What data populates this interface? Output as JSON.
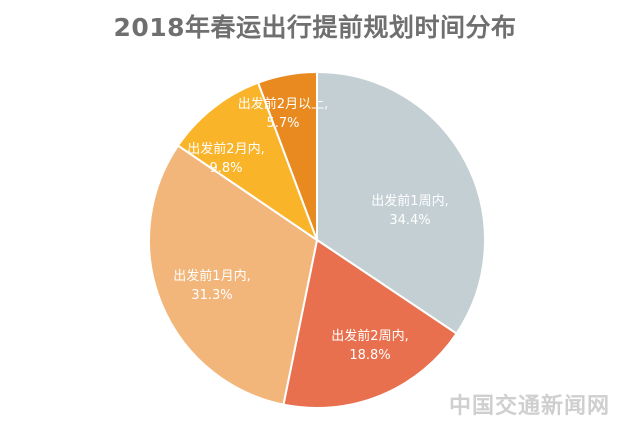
{
  "chart_data": {
    "type": "pie",
    "title": "2018年春运出行提前规划时间分布",
    "start_angle_deg": 0,
    "direction": "clockwise",
    "slices": [
      {
        "label": "出发前1周内,",
        "value": 34.4,
        "value_label": "34.4%",
        "color": "#c3cfd3"
      },
      {
        "label": "出发前2周内,",
        "value": 18.8,
        "value_label": "18.8%",
        "color": "#e8704f"
      },
      {
        "label": "出发前1月内,",
        "value": 31.3,
        "value_label": "31.3%",
        "color": "#f2b57a"
      },
      {
        "label": "出发前2月内,",
        "value": 9.8,
        "value_label": "9.8%",
        "color": "#f9b42a"
      },
      {
        "label": "出发前2月以上,",
        "value": 5.7,
        "value_label": "5.7%",
        "color": "#e88a1f"
      }
    ]
  },
  "watermark": "中国交通新闻网"
}
